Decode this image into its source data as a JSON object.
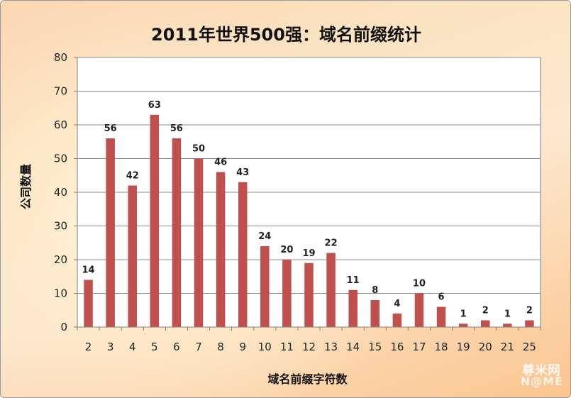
{
  "chart_data": {
    "type": "bar",
    "title": "2011年世界500强：域名前缀统计",
    "xlabel": "域名前缀字符数",
    "ylabel": "公司数量",
    "categories": [
      "2",
      "3",
      "4",
      "5",
      "6",
      "7",
      "8",
      "9",
      "10",
      "11",
      "12",
      "13",
      "14",
      "15",
      "16",
      "17",
      "18",
      "19",
      "20",
      "21",
      "25"
    ],
    "values": [
      14,
      56,
      42,
      63,
      56,
      50,
      46,
      43,
      24,
      20,
      19,
      22,
      11,
      8,
      4,
      10,
      6,
      1,
      2,
      1,
      2
    ],
    "ylim": [
      0,
      80
    ],
    "yticks": [
      0,
      10,
      20,
      30,
      40,
      50,
      60,
      70,
      80
    ],
    "grid": true,
    "bar_color": "#c0504d"
  },
  "watermark": {
    "cn": "尊米网",
    "en": "N@ME"
  }
}
